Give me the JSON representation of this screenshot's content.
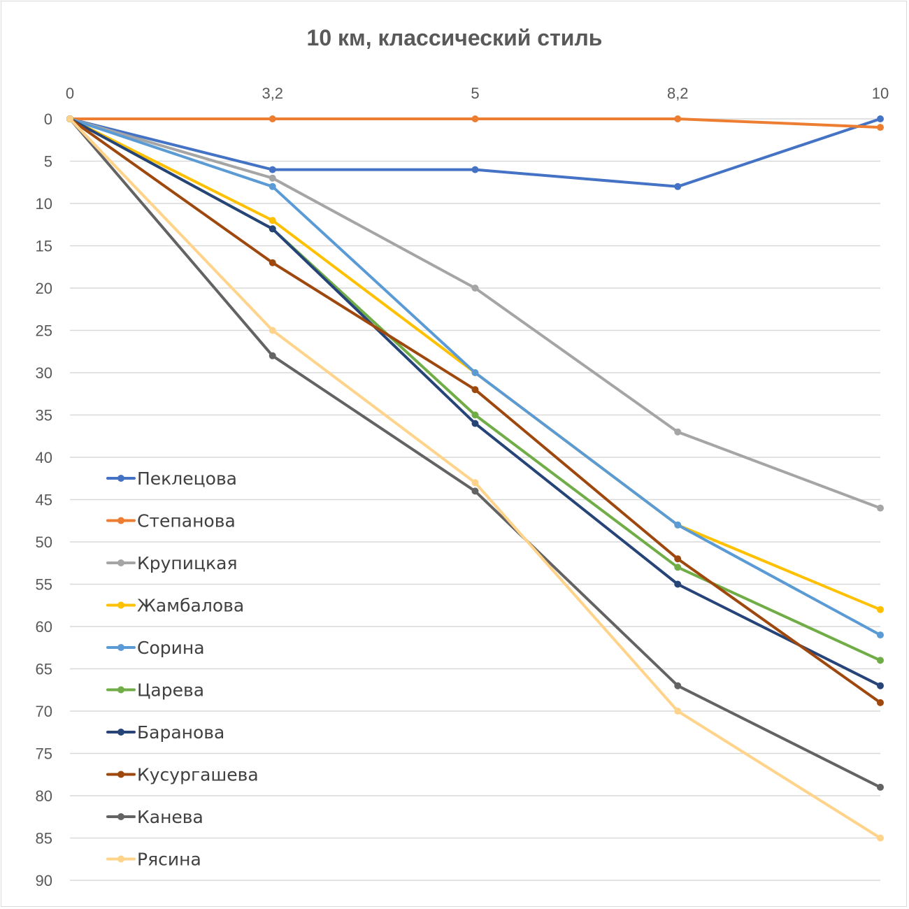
{
  "chart_data": {
    "type": "line",
    "title": "10 км, классический стиль",
    "xlabel": "",
    "ylabel": "",
    "categories": [
      "0",
      "3,2",
      "5",
      "8,2",
      "10"
    ],
    "y_axis": {
      "reversed": true,
      "ylim": [
        0,
        90
      ],
      "major_unit": 5,
      "ticks": [
        0,
        5,
        10,
        15,
        20,
        25,
        30,
        35,
        40,
        45,
        50,
        55,
        60,
        65,
        70,
        75,
        80,
        85,
        90
      ]
    },
    "x_axis_position": "top",
    "grid": "horizontal",
    "legend": {
      "position": "left-inside"
    },
    "series": [
      {
        "name": "Пеклецова",
        "color": "#4472C4",
        "values": [
          0,
          6,
          6,
          8,
          0
        ]
      },
      {
        "name": "Степанова",
        "color": "#ED7D31",
        "values": [
          0,
          0,
          0,
          0,
          1
        ]
      },
      {
        "name": "Крупицкая",
        "color": "#A5A5A5",
        "values": [
          0,
          7,
          20,
          37,
          46
        ]
      },
      {
        "name": "Жамбалова",
        "color": "#FFC000",
        "values": [
          0,
          12,
          30,
          48,
          58
        ]
      },
      {
        "name": "Сорина",
        "color": "#5B9BD5",
        "values": [
          0,
          8,
          30,
          48,
          61
        ]
      },
      {
        "name": "Царева",
        "color": "#70AD47",
        "values": [
          0,
          13,
          35,
          53,
          64
        ]
      },
      {
        "name": "Баранова",
        "color": "#264478",
        "values": [
          0,
          13,
          36,
          55,
          67
        ]
      },
      {
        "name": "Кусургашева",
        "color": "#9E480E",
        "values": [
          0,
          17,
          32,
          52,
          69
        ]
      },
      {
        "name": "Канева",
        "color": "#636363",
        "values": [
          0,
          28,
          44,
          67,
          79
        ]
      },
      {
        "name": "Рясина",
        "color": "#FFD38A",
        "values": [
          0,
          25,
          43,
          70,
          85
        ]
      }
    ]
  }
}
